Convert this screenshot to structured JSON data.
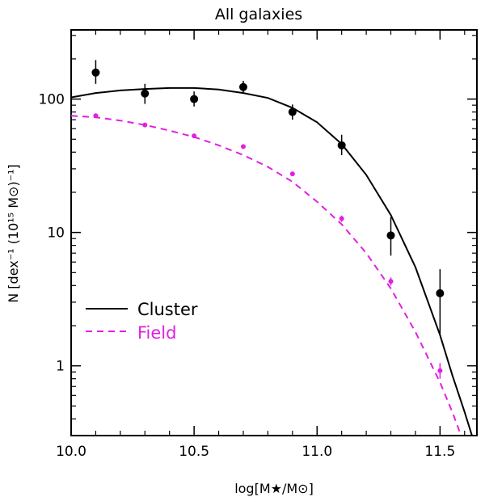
{
  "chart_data": {
    "type": "scatter",
    "title": "All galaxies",
    "xlabel": "log[M★/M⊙]",
    "ylabel": "N [dex⁻¹ (10¹⁵ M⊙)⁻¹]",
    "xlim": [
      10.0,
      11.65
    ],
    "ylim": [
      0.3,
      330
    ],
    "yscale": "log",
    "x_ticks": [
      "10.0",
      "10.5",
      "11.0",
      "11.5"
    ],
    "y_ticks": [
      "1",
      "10",
      "100"
    ],
    "legend_position": "middle-left",
    "colors": {
      "cluster": "#000000",
      "field": "#e020e0"
    },
    "series": [
      {
        "name": "Cluster",
        "kind": "points_with_errorbars",
        "x": [
          10.1,
          10.3,
          10.5,
          10.7,
          10.9,
          11.1,
          11.3,
          11.5
        ],
        "y": [
          158,
          110,
          100,
          123,
          80,
          45,
          9.5,
          3.5
        ],
        "yerr_low": [
          130,
          92,
          88,
          110,
          70,
          38,
          6.7,
          1.7
        ],
        "yerr_high": [
          196,
          130,
          114,
          137,
          91,
          54,
          13,
          5.3
        ]
      },
      {
        "name": "Field",
        "kind": "points",
        "x": [
          10.1,
          10.3,
          10.5,
          10.7,
          10.9,
          11.1,
          11.3,
          11.5
        ],
        "y": [
          75,
          64,
          53,
          44,
          27.5,
          12.7,
          4.3,
          0.92
        ],
        "yerr_low": [
          73,
          62,
          51.5,
          42.5,
          26.5,
          12,
          4.0,
          0.8
        ],
        "yerr_high": [
          77,
          66,
          54.5,
          45.5,
          28.5,
          13.4,
          4.6,
          1.05
        ]
      },
      {
        "name": "Cluster",
        "kind": "fit_curve",
        "line_style": "solid",
        "x": [
          10.0,
          10.1,
          10.2,
          10.3,
          10.4,
          10.5,
          10.6,
          10.7,
          10.8,
          10.9,
          11.0,
          11.1,
          11.2,
          11.3,
          11.4,
          11.5,
          11.55,
          11.6,
          11.63
        ],
        "y": [
          103,
          111,
          116,
          119,
          121,
          121,
          118,
          111,
          102,
          86,
          67,
          46,
          27,
          13.5,
          5.5,
          1.7,
          0.85,
          0.45,
          0.3
        ]
      },
      {
        "name": "Field",
        "kind": "fit_curve",
        "line_style": "dashed",
        "x": [
          10.0,
          10.1,
          10.2,
          10.3,
          10.4,
          10.5,
          10.6,
          10.7,
          10.8,
          10.9,
          11.0,
          11.1,
          11.2,
          11.3,
          11.4,
          11.5,
          11.55,
          11.58
        ],
        "y": [
          75,
          73,
          69,
          64,
          58,
          52,
          45,
          38,
          31,
          24,
          17,
          11.5,
          7,
          3.8,
          1.8,
          0.75,
          0.45,
          0.32
        ]
      }
    ],
    "legend": [
      {
        "label": "Cluster",
        "style": "solid",
        "color": "#000000"
      },
      {
        "label": "Field",
        "style": "dashed",
        "color": "#e020e0"
      }
    ]
  }
}
